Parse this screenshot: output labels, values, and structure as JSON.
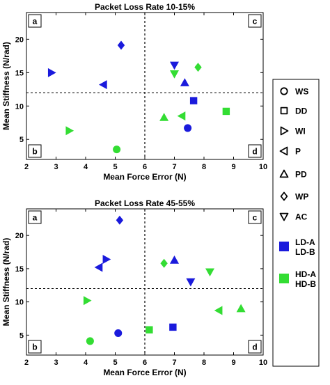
{
  "colors": {
    "blue": "#1a1adc",
    "green": "#33dd33",
    "axis": "#000000"
  },
  "legend": [
    {
      "label": "WS",
      "shape": "circle"
    },
    {
      "label": "DD",
      "shape": "square"
    },
    {
      "label": "WI",
      "shape": "triangle-right"
    },
    {
      "label": "P",
      "shape": "triangle-left"
    },
    {
      "label": "PD",
      "shape": "triangle-up"
    },
    {
      "label": "WP",
      "shape": "diamond"
    },
    {
      "label": "AC",
      "shape": "triangle-down"
    },
    {
      "label": "LD-A\nLD-B",
      "shape": "square-filled",
      "color": "blue"
    },
    {
      "label": "HD-A\nHD-B",
      "shape": "square-filled",
      "color": "green"
    }
  ],
  "chart_data": [
    {
      "type": "scatter",
      "title": "Packet Loss Rate 10-15%",
      "xlabel": "Mean Force Error (N)",
      "ylabel": "Mean Stiffness (N/rad)",
      "xlim": [
        2,
        10
      ],
      "ylim": [
        2,
        24
      ],
      "xticks": [
        2,
        3,
        4,
        5,
        6,
        7,
        8,
        9,
        10
      ],
      "yticks": [
        5,
        10,
        15,
        20
      ],
      "ref_lines": {
        "x": 6,
        "y": 12
      },
      "quadrants": [
        "a",
        "b",
        "c",
        "d"
      ],
      "points": [
        {
          "marker": "diamond",
          "color": "blue",
          "x": 5.2,
          "y": 19.1
        },
        {
          "marker": "triangle-right",
          "color": "blue",
          "x": 2.85,
          "y": 15.0
        },
        {
          "marker": "triangle-left",
          "color": "blue",
          "x": 4.6,
          "y": 13.2
        },
        {
          "marker": "triangle-down",
          "color": "blue",
          "x": 7.0,
          "y": 16.1
        },
        {
          "marker": "triangle-up",
          "color": "blue",
          "x": 7.35,
          "y": 13.5
        },
        {
          "marker": "square",
          "color": "blue",
          "x": 7.65,
          "y": 10.8
        },
        {
          "marker": "circle",
          "color": "blue",
          "x": 7.45,
          "y": 6.7
        },
        {
          "marker": "diamond",
          "color": "green",
          "x": 7.8,
          "y": 15.8
        },
        {
          "marker": "triangle-down",
          "color": "green",
          "x": 7.0,
          "y": 14.8
        },
        {
          "marker": "triangle-up",
          "color": "green",
          "x": 6.65,
          "y": 8.3
        },
        {
          "marker": "triangle-left",
          "color": "green",
          "x": 7.25,
          "y": 8.5
        },
        {
          "marker": "square",
          "color": "green",
          "x": 8.75,
          "y": 9.2
        },
        {
          "marker": "triangle-right",
          "color": "green",
          "x": 3.45,
          "y": 6.3
        },
        {
          "marker": "circle",
          "color": "green",
          "x": 5.05,
          "y": 3.5
        }
      ]
    },
    {
      "type": "scatter",
      "title": "Packet Loss Rate 45-55%",
      "xlabel": "Mean Force Error (N)",
      "ylabel": "Mean Stiffness (N/rad)",
      "xlim": [
        2,
        10
      ],
      "ylim": [
        2,
        24
      ],
      "xticks": [
        2,
        3,
        4,
        5,
        6,
        7,
        8,
        9,
        10
      ],
      "yticks": [
        5,
        10,
        15,
        20
      ],
      "ref_lines": {
        "x": 6,
        "y": 12
      },
      "quadrants": [
        "a",
        "b",
        "c",
        "d"
      ],
      "points": [
        {
          "marker": "diamond",
          "color": "blue",
          "x": 5.15,
          "y": 22.3
        },
        {
          "marker": "triangle-right",
          "color": "blue",
          "x": 4.7,
          "y": 16.4
        },
        {
          "marker": "triangle-left",
          "color": "blue",
          "x": 4.45,
          "y": 15.2
        },
        {
          "marker": "triangle-up",
          "color": "blue",
          "x": 7.0,
          "y": 16.3
        },
        {
          "marker": "triangle-down",
          "color": "blue",
          "x": 7.55,
          "y": 13.0
        },
        {
          "marker": "circle",
          "color": "blue",
          "x": 5.1,
          "y": 5.3
        },
        {
          "marker": "square",
          "color": "blue",
          "x": 6.95,
          "y": 6.2
        },
        {
          "marker": "diamond",
          "color": "green",
          "x": 6.65,
          "y": 15.8
        },
        {
          "marker": "triangle-down",
          "color": "green",
          "x": 8.2,
          "y": 14.5
        },
        {
          "marker": "triangle-right",
          "color": "green",
          "x": 4.05,
          "y": 10.2
        },
        {
          "marker": "triangle-left",
          "color": "green",
          "x": 8.5,
          "y": 8.7
        },
        {
          "marker": "triangle-up",
          "color": "green",
          "x": 9.25,
          "y": 9.0
        },
        {
          "marker": "square",
          "color": "green",
          "x": 6.15,
          "y": 5.8
        },
        {
          "marker": "circle",
          "color": "green",
          "x": 4.15,
          "y": 4.1
        }
      ]
    }
  ]
}
